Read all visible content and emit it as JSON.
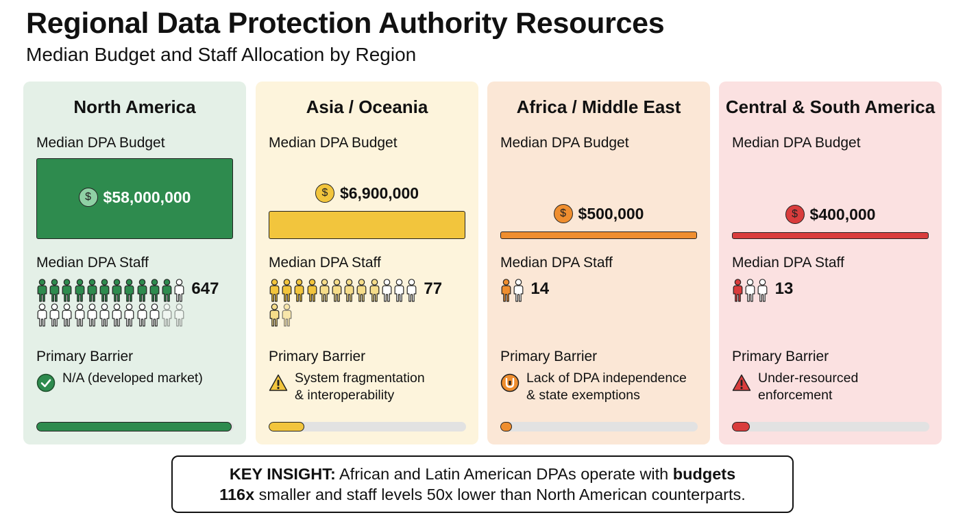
{
  "header": {
    "title": "Regional Data Protection Authority Resources",
    "subtitle": "Median Budget and Staff Allocation by Region"
  },
  "labels": {
    "budget": "Median DPA Budget",
    "staff": "Median DPA Staff",
    "barrier": "Primary Barrier",
    "currency_icon": "$"
  },
  "regions": [
    {
      "name": "North America",
      "budget_label": "$58,000,000",
      "staff_label": "647",
      "barrier_line1": "N/A (developed market)",
      "barrier_line2": "",
      "barrier_icon": "check-circle-icon",
      "accent": "#2e8b4e",
      "accent_light": "#8fd1a5",
      "bg": "#e4f0e7",
      "progress": 0.99
    },
    {
      "name": "Asia / Oceania",
      "budget_label": "$6,900,000",
      "staff_label": "77",
      "barrier_line1": "System fragmentation",
      "barrier_line2": "& interoperability",
      "barrier_icon": "warning-triangle-icon",
      "accent": "#f2c53d",
      "accent_light": "#f6dd8a",
      "bg": "#fdf4dc",
      "progress": 0.18
    },
    {
      "name": "Africa / Middle East",
      "budget_label": "$500,000",
      "staff_label": "14",
      "barrier_line1": "Lack of DPA independence",
      "barrier_line2": "& state exemptions",
      "barrier_icon": "shield-exemption-icon",
      "accent": "#ef8e2f",
      "accent_light": "#f5b87a",
      "bg": "#fbe7d6",
      "progress": 0.06
    },
    {
      "name": "Central & South America",
      "budget_label": "$400,000",
      "staff_label": "13",
      "barrier_line1": "Under-resourced",
      "barrier_line2": "enforcement",
      "barrier_icon": "alert-triangle-icon",
      "accent": "#d93c3c",
      "accent_light": "#ee9a9a",
      "bg": "#fbe1e1",
      "progress": 0.09
    }
  ],
  "chart_data": {
    "type": "bar",
    "categories": [
      "North America",
      "Asia / Oceania",
      "Africa / Middle East",
      "Central & South America"
    ],
    "series": [
      {
        "name": "Median DPA Budget",
        "values": [
          58000000,
          6900000,
          500000,
          400000
        ]
      },
      {
        "name": "Median DPA Staff",
        "values": [
          647,
          77,
          14,
          13
        ]
      }
    ],
    "title": "Regional Data Protection Authority Resources",
    "subtitle": "Median Budget and Staff Allocation by Region"
  },
  "insight": {
    "prefix": "KEY INSIGHT:",
    "part1": " African and Latin American DPAs operate with ",
    "bold1": "budgets",
    "bold2": "116x",
    "part2": " smaller and staff levels 50x lower than North American counterparts."
  }
}
